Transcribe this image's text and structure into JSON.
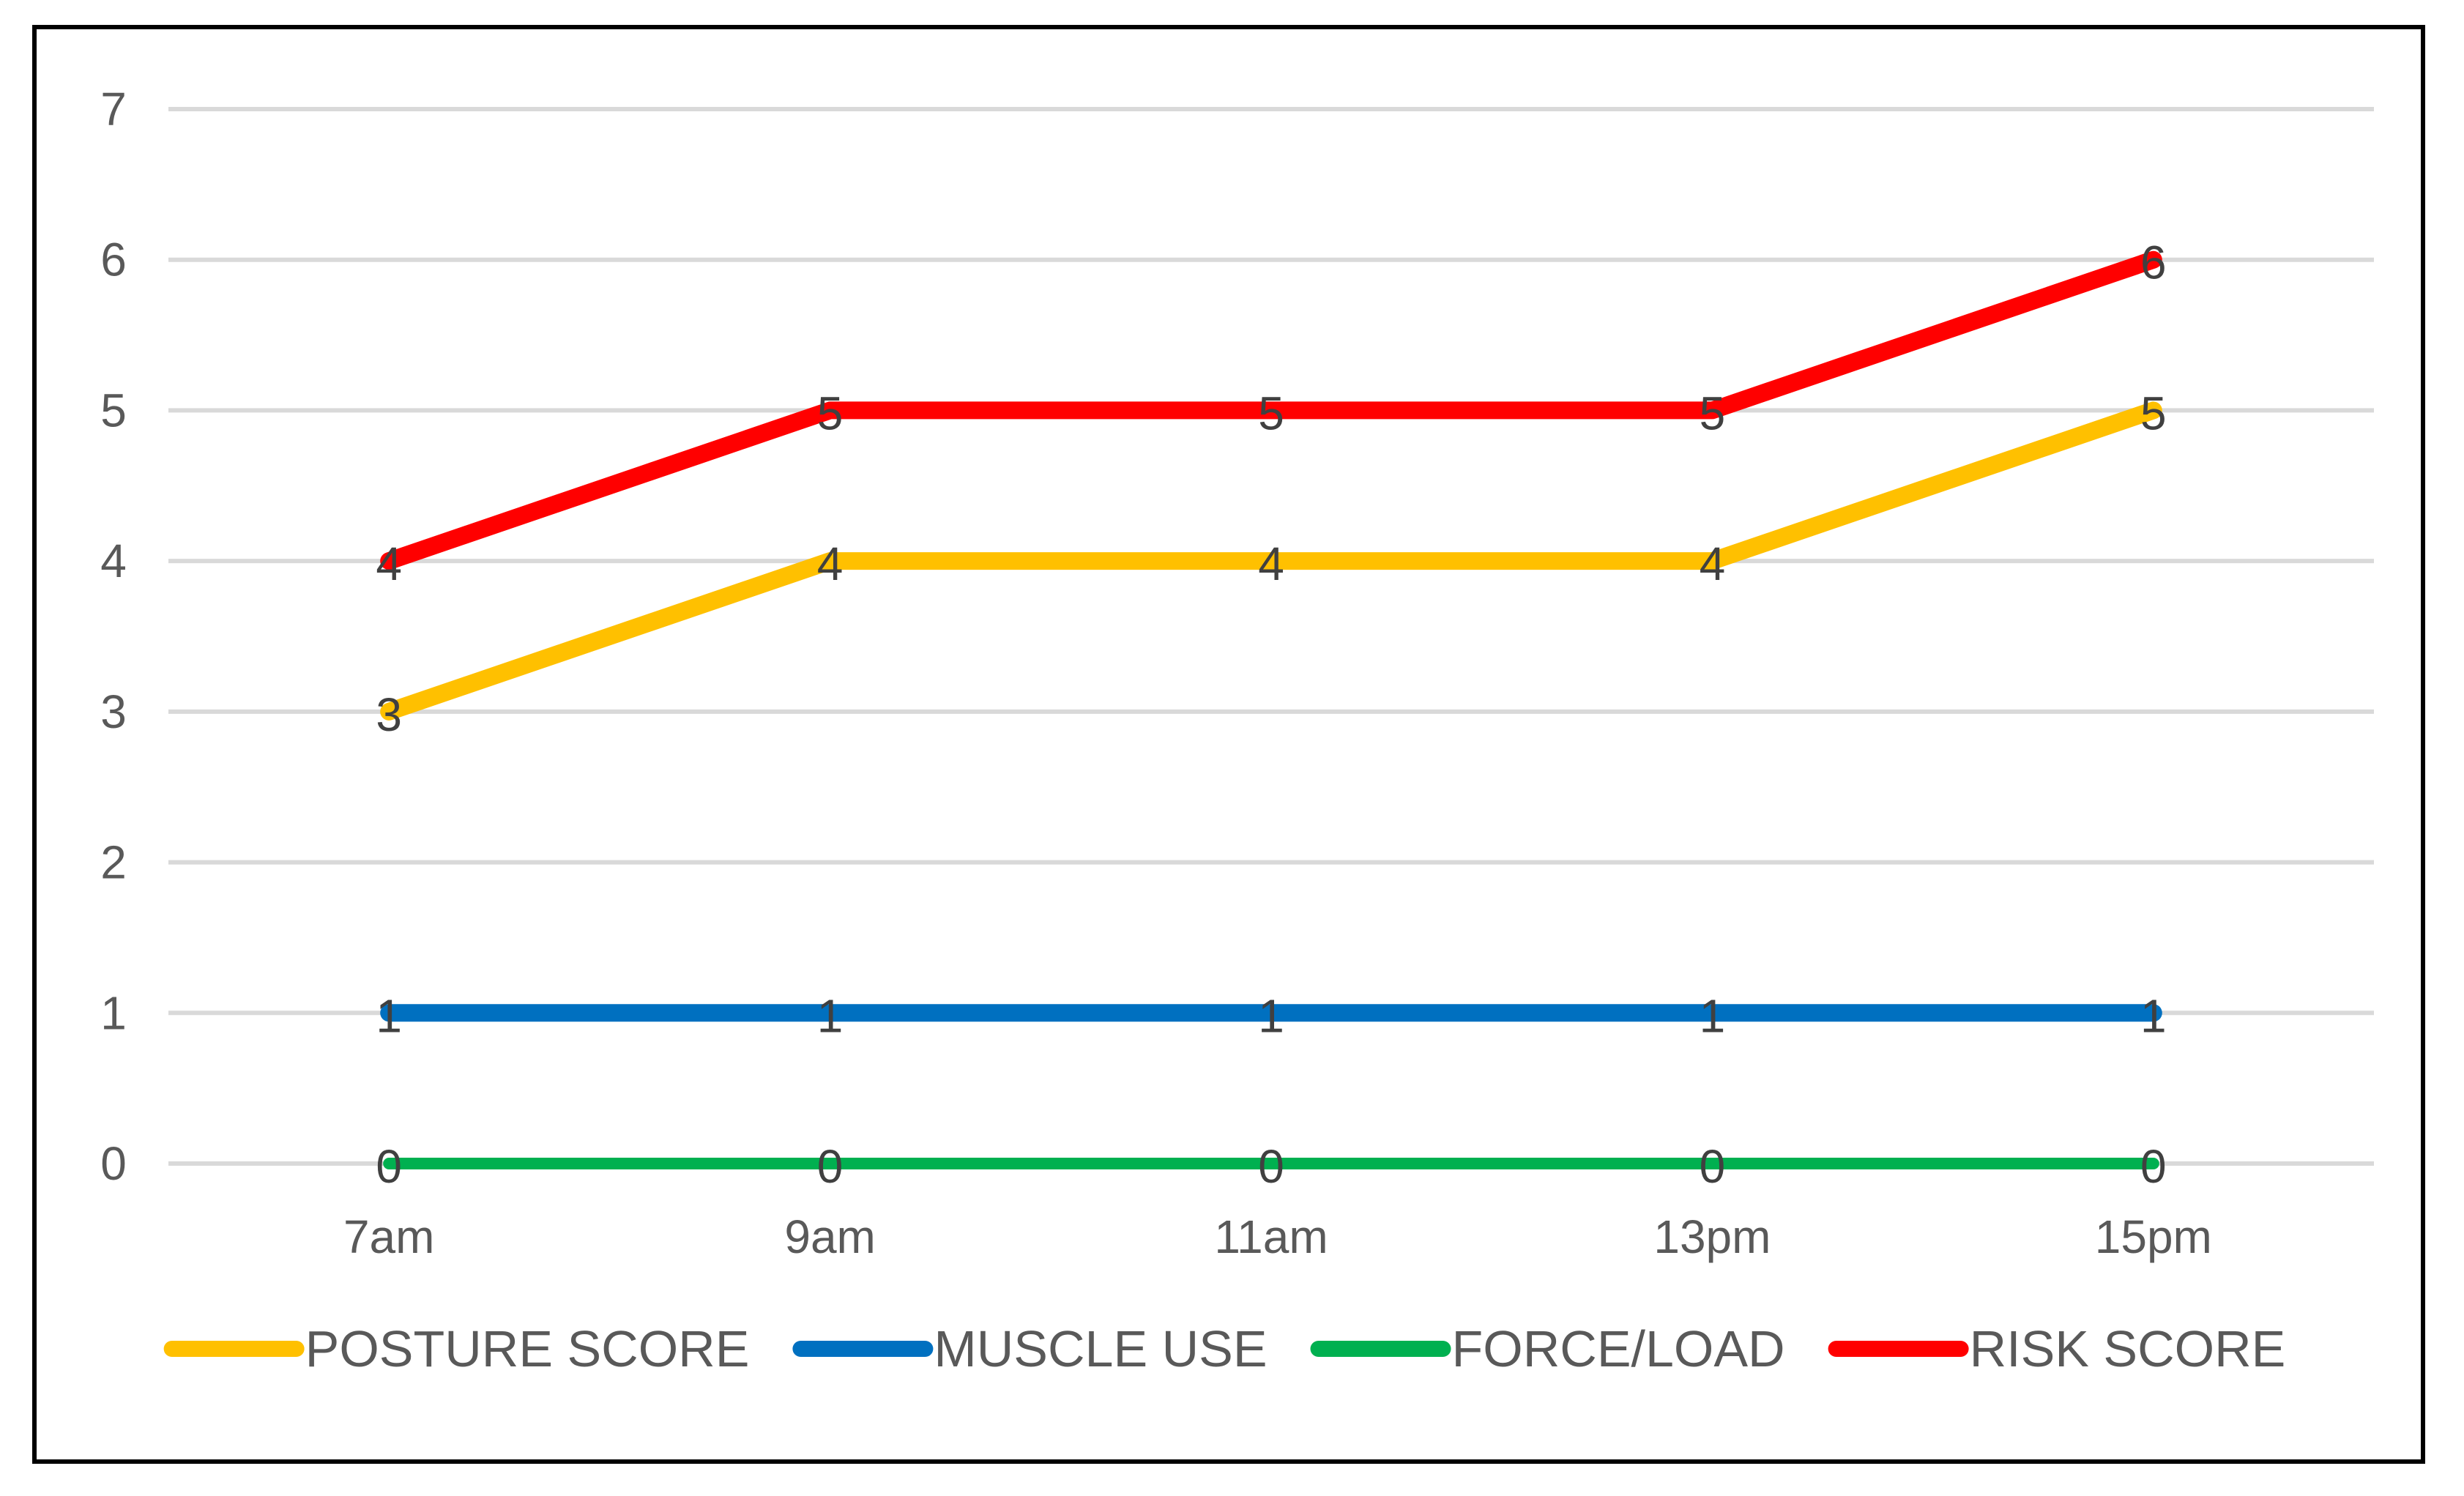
{
  "chart_data": {
    "type": "line",
    "title": "",
    "xlabel": "",
    "ylabel": "",
    "categories": [
      "7am",
      "9am",
      "11am",
      "13pm",
      "15pm"
    ],
    "ylim": [
      0,
      7
    ],
    "yticks": [
      "0",
      "1",
      "2",
      "3",
      "4",
      "5",
      "6",
      "7"
    ],
    "grid": true,
    "legend_position": "bottom",
    "data_labels": true,
    "series": [
      {
        "name": "POSTURE SCORE",
        "color": "#ffc000",
        "values": [
          3,
          4,
          4,
          4,
          5
        ]
      },
      {
        "name": "MUSCLE USE",
        "color": "#0070c0",
        "values": [
          1,
          1,
          1,
          1,
          1
        ]
      },
      {
        "name": "FORCE/LOAD",
        "color": "#00b050",
        "values": [
          0,
          0,
          0,
          0,
          0
        ]
      },
      {
        "name": "RISK SCORE",
        "color": "#ff0000",
        "values": [
          4,
          5,
          5,
          5,
          6
        ]
      }
    ]
  }
}
